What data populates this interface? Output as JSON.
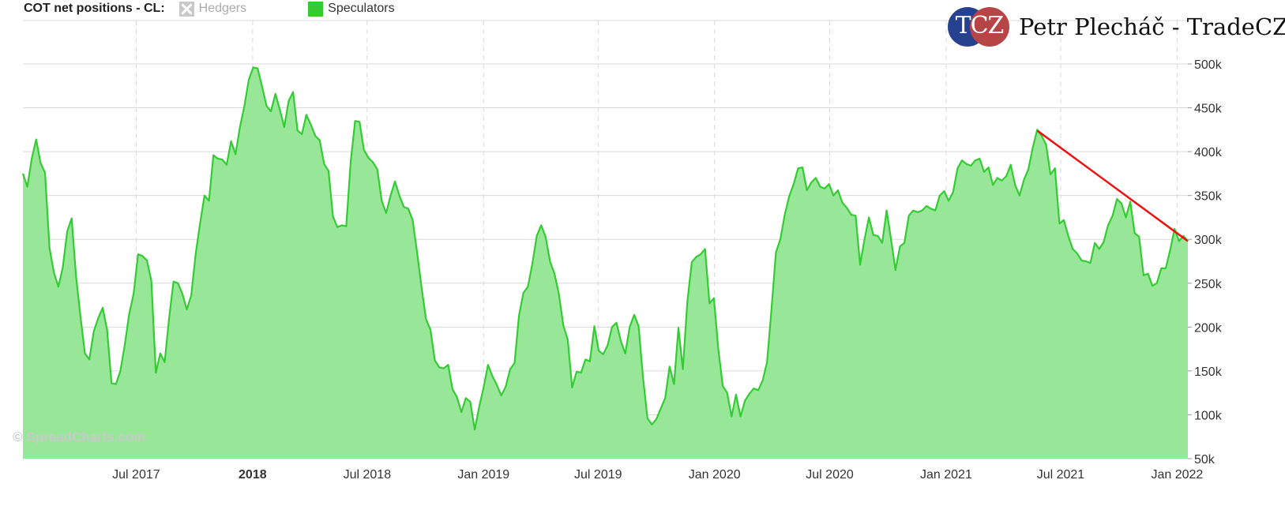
{
  "legend": {
    "title": "COT net positions - CL:",
    "hedgers_label": "Hedgers",
    "speculators_label": "Speculators"
  },
  "brand": {
    "logo_text": "TCZ",
    "name": "Petr Plecháč - TradeCZ"
  },
  "credits": "© SpreadCharts.com",
  "colors": {
    "line": "#33cc33",
    "area": "#98e698",
    "trendline": "#ee1111",
    "hedgers_disabled": "#c8c8c8",
    "grid": "#d9d9d9"
  },
  "chart_data": {
    "type": "area",
    "series": [
      {
        "name": "Speculators",
        "points": [
          [
            "2017-01-03",
            375
          ],
          [
            "2017-01-10",
            360
          ],
          [
            "2017-01-17",
            392
          ],
          [
            "2017-01-24",
            414
          ],
          [
            "2017-01-31",
            387
          ],
          [
            "2017-02-07",
            376
          ],
          [
            "2017-02-14",
            290
          ],
          [
            "2017-02-21",
            262
          ],
          [
            "2017-02-28",
            246
          ],
          [
            "2017-03-07",
            268
          ],
          [
            "2017-03-14",
            309
          ],
          [
            "2017-03-21",
            324
          ],
          [
            "2017-03-28",
            258
          ],
          [
            "2017-04-04",
            212
          ],
          [
            "2017-04-11",
            170
          ],
          [
            "2017-04-18",
            163
          ],
          [
            "2017-04-25",
            195
          ],
          [
            "2017-05-02",
            210
          ],
          [
            "2017-05-09",
            222
          ],
          [
            "2017-05-16",
            197
          ],
          [
            "2017-05-23",
            136
          ],
          [
            "2017-05-30",
            135
          ],
          [
            "2017-06-06",
            150
          ],
          [
            "2017-06-13",
            180
          ],
          [
            "2017-06-20",
            215
          ],
          [
            "2017-06-27",
            238
          ],
          [
            "2017-07-04",
            283
          ],
          [
            "2017-07-11",
            281
          ],
          [
            "2017-07-18",
            276
          ],
          [
            "2017-07-25",
            253
          ],
          [
            "2017-08-01",
            148
          ],
          [
            "2017-08-08",
            170
          ],
          [
            "2017-08-15",
            160
          ],
          [
            "2017-08-22",
            210
          ],
          [
            "2017-08-29",
            252
          ],
          [
            "2017-09-05",
            250
          ],
          [
            "2017-09-12",
            238
          ],
          [
            "2017-09-19",
            220
          ],
          [
            "2017-09-26",
            236
          ],
          [
            "2017-10-03",
            283
          ],
          [
            "2017-10-10",
            318
          ],
          [
            "2017-10-17",
            350
          ],
          [
            "2017-10-24",
            344
          ],
          [
            "2017-10-31",
            396
          ],
          [
            "2017-11-07",
            392
          ],
          [
            "2017-11-14",
            391
          ],
          [
            "2017-11-21",
            385
          ],
          [
            "2017-11-28",
            412
          ],
          [
            "2017-12-05",
            397
          ],
          [
            "2017-12-12",
            428
          ],
          [
            "2017-12-19",
            452
          ],
          [
            "2017-12-26",
            482
          ],
          [
            "2018-01-02",
            496
          ],
          [
            "2018-01-09",
            495
          ],
          [
            "2018-01-16",
            474
          ],
          [
            "2018-01-23",
            452
          ],
          [
            "2018-01-30",
            446
          ],
          [
            "2018-02-06",
            466
          ],
          [
            "2018-02-13",
            448
          ],
          [
            "2018-02-20",
            428
          ],
          [
            "2018-02-27",
            458
          ],
          [
            "2018-03-06",
            468
          ],
          [
            "2018-03-13",
            424
          ],
          [
            "2018-03-20",
            420
          ],
          [
            "2018-03-27",
            442
          ],
          [
            "2018-04-03",
            431
          ],
          [
            "2018-04-10",
            418
          ],
          [
            "2018-04-17",
            413
          ],
          [
            "2018-04-24",
            386
          ],
          [
            "2018-05-01",
            378
          ],
          [
            "2018-05-08",
            326
          ],
          [
            "2018-05-15",
            314
          ],
          [
            "2018-05-22",
            316
          ],
          [
            "2018-05-29",
            315
          ],
          [
            "2018-06-05",
            388
          ],
          [
            "2018-06-12",
            435
          ],
          [
            "2018-06-19",
            434
          ],
          [
            "2018-06-26",
            402
          ],
          [
            "2018-07-03",
            393
          ],
          [
            "2018-07-10",
            388
          ],
          [
            "2018-07-17",
            380
          ],
          [
            "2018-07-24",
            344
          ],
          [
            "2018-07-31",
            330
          ],
          [
            "2018-08-07",
            350
          ],
          [
            "2018-08-14",
            366
          ],
          [
            "2018-08-21",
            350
          ],
          [
            "2018-08-28",
            337
          ],
          [
            "2018-09-04",
            335
          ],
          [
            "2018-09-11",
            322
          ],
          [
            "2018-09-18",
            285
          ],
          [
            "2018-09-25",
            245
          ],
          [
            "2018-10-02",
            209
          ],
          [
            "2018-10-09",
            197
          ],
          [
            "2018-10-16",
            162
          ],
          [
            "2018-10-23",
            154
          ],
          [
            "2018-10-30",
            153
          ],
          [
            "2018-11-06",
            157
          ],
          [
            "2018-11-13",
            129
          ],
          [
            "2018-11-20",
            120
          ],
          [
            "2018-11-27",
            103
          ],
          [
            "2018-12-04",
            119
          ],
          [
            "2018-12-11",
            115
          ],
          [
            "2018-12-18",
            83
          ],
          [
            "2018-12-25",
            109
          ],
          [
            "2019-01-01",
            131
          ],
          [
            "2019-01-08",
            157
          ],
          [
            "2019-01-15",
            144
          ],
          [
            "2019-01-22",
            134
          ],
          [
            "2019-01-29",
            122
          ],
          [
            "2019-02-05",
            132
          ],
          [
            "2019-02-12",
            152
          ],
          [
            "2019-02-19",
            159
          ],
          [
            "2019-02-26",
            213
          ],
          [
            "2019-03-05",
            239
          ],
          [
            "2019-03-12",
            246
          ],
          [
            "2019-03-19",
            272
          ],
          [
            "2019-03-26",
            304
          ],
          [
            "2019-04-02",
            316
          ],
          [
            "2019-04-09",
            303
          ],
          [
            "2019-04-16",
            275
          ],
          [
            "2019-04-23",
            261
          ],
          [
            "2019-04-30",
            238
          ],
          [
            "2019-05-07",
            202
          ],
          [
            "2019-05-14",
            186
          ],
          [
            "2019-05-21",
            131
          ],
          [
            "2019-05-28",
            149
          ],
          [
            "2019-06-04",
            148
          ],
          [
            "2019-06-11",
            163
          ],
          [
            "2019-06-18",
            161
          ],
          [
            "2019-06-25",
            201
          ],
          [
            "2019-07-02",
            173
          ],
          [
            "2019-07-09",
            169
          ],
          [
            "2019-07-16",
            179
          ],
          [
            "2019-07-23",
            200
          ],
          [
            "2019-07-30",
            205
          ],
          [
            "2019-08-06",
            184
          ],
          [
            "2019-08-13",
            170
          ],
          [
            "2019-08-20",
            200
          ],
          [
            "2019-08-27",
            214
          ],
          [
            "2019-09-03",
            201
          ],
          [
            "2019-09-10",
            142
          ],
          [
            "2019-09-17",
            96
          ],
          [
            "2019-09-24",
            89
          ],
          [
            "2019-10-01",
            95
          ],
          [
            "2019-10-08",
            107
          ],
          [
            "2019-10-15",
            119
          ],
          [
            "2019-10-22",
            155
          ],
          [
            "2019-10-29",
            135
          ],
          [
            "2019-11-05",
            199
          ],
          [
            "2019-11-12",
            152
          ],
          [
            "2019-11-19",
            229
          ],
          [
            "2019-11-26",
            274
          ],
          [
            "2019-12-03",
            280
          ],
          [
            "2019-12-10",
            283
          ],
          [
            "2019-12-17",
            289
          ],
          [
            "2019-12-24",
            227
          ],
          [
            "2019-12-31",
            233
          ],
          [
            "2020-01-07",
            175
          ],
          [
            "2020-01-14",
            133
          ],
          [
            "2020-01-21",
            125
          ],
          [
            "2020-01-28",
            98
          ],
          [
            "2020-02-04",
            123
          ],
          [
            "2020-02-11",
            98
          ],
          [
            "2020-02-18",
            116
          ],
          [
            "2020-02-25",
            124
          ],
          [
            "2020-03-03",
            130
          ],
          [
            "2020-03-10",
            128
          ],
          [
            "2020-03-17",
            139
          ],
          [
            "2020-03-24",
            160
          ],
          [
            "2020-03-31",
            220
          ],
          [
            "2020-04-07",
            285
          ],
          [
            "2020-04-14",
            300
          ],
          [
            "2020-04-21",
            328
          ],
          [
            "2020-04-28",
            349
          ],
          [
            "2020-05-05",
            363
          ],
          [
            "2020-05-12",
            381
          ],
          [
            "2020-05-19",
            382
          ],
          [
            "2020-05-26",
            356
          ],
          [
            "2020-06-02",
            365
          ],
          [
            "2020-06-09",
            370
          ],
          [
            "2020-06-16",
            360
          ],
          [
            "2020-06-23",
            358
          ],
          [
            "2020-06-30",
            363
          ],
          [
            "2020-07-07",
            350
          ],
          [
            "2020-07-14",
            356
          ],
          [
            "2020-07-21",
            342
          ],
          [
            "2020-07-28",
            336
          ],
          [
            "2020-08-04",
            328
          ],
          [
            "2020-08-11",
            327
          ],
          [
            "2020-08-18",
            271
          ],
          [
            "2020-08-25",
            300
          ],
          [
            "2020-09-01",
            325
          ],
          [
            "2020-09-08",
            305
          ],
          [
            "2020-09-15",
            304
          ],
          [
            "2020-09-22",
            296
          ],
          [
            "2020-09-29",
            333
          ],
          [
            "2020-10-06",
            300
          ],
          [
            "2020-10-13",
            265
          ],
          [
            "2020-10-20",
            292
          ],
          [
            "2020-10-27",
            296
          ],
          [
            "2020-11-03",
            327
          ],
          [
            "2020-11-10",
            333
          ],
          [
            "2020-11-17",
            331
          ],
          [
            "2020-11-24",
            333
          ],
          [
            "2020-12-01",
            338
          ],
          [
            "2020-12-08",
            335
          ],
          [
            "2020-12-15",
            333
          ],
          [
            "2020-12-22",
            350
          ],
          [
            "2020-12-29",
            355
          ],
          [
            "2021-01-05",
            344
          ],
          [
            "2021-01-12",
            354
          ],
          [
            "2021-01-19",
            381
          ],
          [
            "2021-01-26",
            390
          ],
          [
            "2021-02-02",
            386
          ],
          [
            "2021-02-09",
            384
          ],
          [
            "2021-02-16",
            390
          ],
          [
            "2021-02-23",
            392
          ],
          [
            "2021-03-02",
            377
          ],
          [
            "2021-03-09",
            382
          ],
          [
            "2021-03-16",
            362
          ],
          [
            "2021-03-23",
            370
          ],
          [
            "2021-03-30",
            367
          ],
          [
            "2021-04-06",
            372
          ],
          [
            "2021-04-13",
            385
          ],
          [
            "2021-04-20",
            362
          ],
          [
            "2021-04-27",
            350
          ],
          [
            "2021-05-04",
            368
          ],
          [
            "2021-05-11",
            380
          ],
          [
            "2021-05-18",
            405
          ],
          [
            "2021-05-25",
            425
          ],
          [
            "2021-06-01",
            418
          ],
          [
            "2021-06-08",
            408
          ],
          [
            "2021-06-15",
            374
          ],
          [
            "2021-06-22",
            381
          ],
          [
            "2021-06-29",
            318
          ],
          [
            "2021-07-06",
            322
          ],
          [
            "2021-07-13",
            304
          ],
          [
            "2021-07-20",
            289
          ],
          [
            "2021-07-27",
            284
          ],
          [
            "2021-08-03",
            276
          ],
          [
            "2021-08-10",
            275
          ],
          [
            "2021-08-17",
            273
          ],
          [
            "2021-08-24",
            296
          ],
          [
            "2021-08-31",
            289
          ],
          [
            "2021-09-07",
            297
          ],
          [
            "2021-09-14",
            316
          ],
          [
            "2021-09-21",
            327
          ],
          [
            "2021-09-28",
            346
          ],
          [
            "2021-10-05",
            341
          ],
          [
            "2021-10-12",
            325
          ],
          [
            "2021-10-19",
            343
          ],
          [
            "2021-10-26",
            307
          ],
          [
            "2021-11-02",
            303
          ],
          [
            "2021-11-09",
            259
          ],
          [
            "2021-11-16",
            261
          ],
          [
            "2021-11-23",
            247
          ],
          [
            "2021-11-30",
            250
          ],
          [
            "2021-12-07",
            267
          ],
          [
            "2021-12-14",
            267
          ],
          [
            "2021-12-21",
            288
          ],
          [
            "2021-12-28",
            312
          ],
          [
            "2022-01-04",
            298
          ],
          [
            "2022-01-11",
            304
          ],
          [
            "2022-01-18",
            298
          ]
        ]
      }
    ],
    "trendline": [
      [
        "2021-05-25",
        424
      ],
      [
        "2022-01-18",
        298
      ]
    ],
    "hedgers_visible": false,
    "y_ticks": [
      50,
      100,
      150,
      200,
      250,
      300,
      350,
      400,
      450,
      500
    ],
    "y_tick_labels": [
      "50k",
      "100k",
      "150k",
      "200k",
      "250k",
      "300k",
      "350k",
      "400k",
      "450k",
      "500k"
    ],
    "ylim": [
      50,
      500
    ],
    "x_range": [
      "2017-01-03",
      "2022-01-18"
    ],
    "x_ticks": [
      {
        "date": "2017-07-01",
        "label": "Jul 2017",
        "bold": false
      },
      {
        "date": "2018-01-01",
        "label": "2018",
        "bold": true
      },
      {
        "date": "2018-07-01",
        "label": "Jul 2018",
        "bold": false
      },
      {
        "date": "2019-01-01",
        "label": "Jan 2019",
        "bold": false
      },
      {
        "date": "2019-07-01",
        "label": "Jul 2019",
        "bold": false
      },
      {
        "date": "2020-01-01",
        "label": "Jan 2020",
        "bold": false
      },
      {
        "date": "2020-07-01",
        "label": "Jul 2020",
        "bold": false
      },
      {
        "date": "2021-01-01",
        "label": "Jan 2021",
        "bold": false
      },
      {
        "date": "2021-07-01",
        "label": "Jul 2021",
        "bold": false
      },
      {
        "date": "2022-01-01",
        "label": "Jan 2022",
        "bold": false
      }
    ],
    "grid": true,
    "y_axis_position": "right",
    "legend_position": "top-left"
  }
}
